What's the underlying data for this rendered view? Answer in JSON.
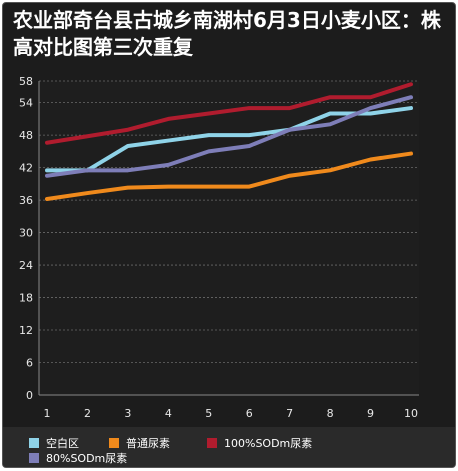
{
  "chart_data": {
    "type": "line",
    "title": "农业部奇台县古城乡南湖村6月3日小麦小区：株高对比图第三次重复",
    "x": [
      1,
      2,
      3,
      4,
      5,
      6,
      7,
      8,
      9,
      10
    ],
    "y_ticks": [
      0,
      6,
      12,
      18,
      24,
      30,
      36,
      42,
      48,
      54,
      58
    ],
    "ylim": [
      0,
      58
    ],
    "grid": "horizontal dashed",
    "legend_position": "bottom",
    "series": [
      {
        "name": "空白区",
        "color": "#8fd3e8",
        "values": [
          41.5,
          41.5,
          46,
          47,
          48,
          48,
          49,
          52,
          52,
          53
        ]
      },
      {
        "name": "普通尿素",
        "color": "#f08a1c",
        "values": [
          36.2,
          37.3,
          38.3,
          38.5,
          38.5,
          38.5,
          40.5,
          41.5,
          43.5,
          44.6
        ]
      },
      {
        "name": "100%SODm尿素",
        "color": "#b01c2e",
        "values": [
          46.6,
          47.8,
          49,
          51,
          52,
          53,
          53,
          55,
          55,
          57.4
        ]
      },
      {
        "name": "80%SODm尿素",
        "color": "#7e7eb8",
        "values": [
          40.5,
          41.5,
          41.5,
          42.5,
          45,
          46,
          49,
          50,
          53,
          55
        ]
      }
    ]
  }
}
